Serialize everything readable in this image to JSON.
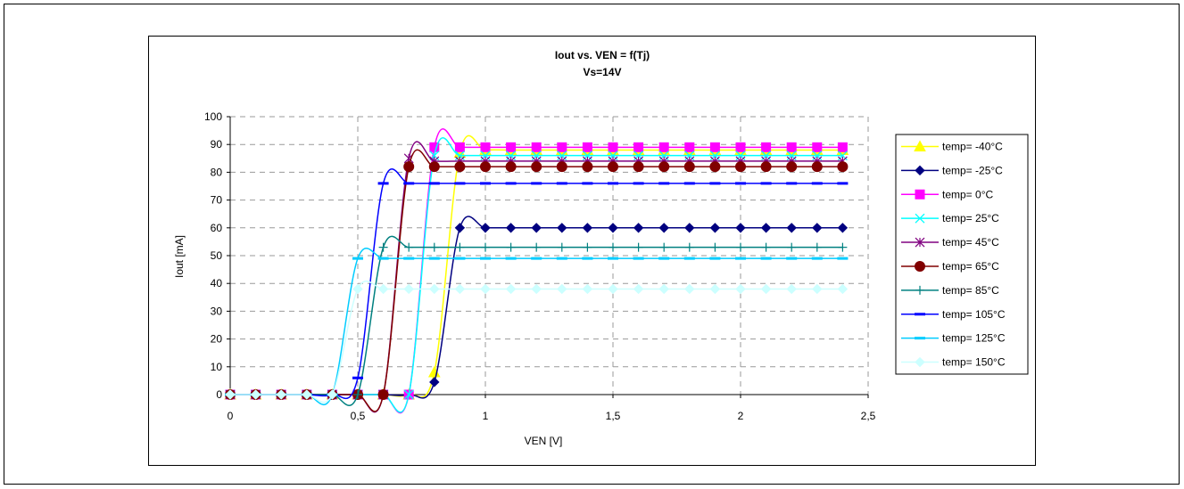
{
  "chart_data": {
    "type": "line",
    "title": "Iout vs. VEN = f(Tj)",
    "subtitle": "Vs=14V",
    "xlabel": "VEN [V]",
    "ylabel": "Iout [mA]",
    "xlim": [
      0,
      2.5
    ],
    "ylim": [
      0,
      100
    ],
    "xticks": [
      0,
      0.5,
      1,
      1.5,
      2,
      2.5
    ],
    "xtick_labels": [
      "0",
      "0,5",
      "1",
      "1,5",
      "2",
      "2,5"
    ],
    "yticks": [
      0,
      10,
      20,
      30,
      40,
      50,
      60,
      70,
      80,
      90,
      100
    ],
    "ytick_labels": [
      "0",
      "10",
      "20",
      "30",
      "40",
      "50",
      "60",
      "70",
      "80",
      "90",
      "100"
    ],
    "grid": "dashed",
    "legend_position": "right",
    "x": [
      0,
      0.1,
      0.2,
      0.3,
      0.4,
      0.5,
      0.6,
      0.7,
      0.8,
      0.9,
      1.0,
      1.1,
      1.2,
      1.3,
      1.4,
      1.5,
      1.6,
      1.7,
      1.8,
      1.9,
      2.0,
      2.1,
      2.2,
      2.3,
      2.4
    ],
    "series": [
      {
        "name": "temp= -40°C",
        "color": "#ffff00",
        "marker": "triangle",
        "values": [
          0,
          0,
          0,
          0,
          0,
          0,
          0,
          0,
          8,
          87,
          88,
          88,
          88,
          88,
          88,
          88,
          88,
          88,
          88,
          88,
          88,
          88,
          88,
          88,
          88
        ]
      },
      {
        "name": "temp= -25°C",
        "color": "#000080",
        "marker": "diamond",
        "values": [
          0,
          0,
          0,
          0,
          0,
          0,
          0,
          0,
          4.5,
          60,
          60,
          60,
          60,
          60,
          60,
          60,
          60,
          60,
          60,
          60,
          60,
          60,
          60,
          60,
          60
        ]
      },
      {
        "name": "temp= 0°C",
        "color": "#ff00ff",
        "marker": "square",
        "values": [
          0,
          0,
          0,
          0,
          0,
          0,
          0,
          0,
          89,
          89,
          89,
          89,
          89,
          89,
          89,
          89,
          89,
          89,
          89,
          89,
          89,
          89,
          89,
          89,
          89
        ]
      },
      {
        "name": "temp= 25°C",
        "color": "#00ffff",
        "marker": "x",
        "values": [
          0,
          0,
          0,
          0,
          0,
          0,
          0,
          0,
          86,
          86,
          86,
          86,
          86,
          86,
          86,
          86,
          86,
          86,
          86,
          86,
          86,
          86,
          86,
          86,
          86
        ]
      },
      {
        "name": "temp= 45°C",
        "color": "#800080",
        "marker": "star",
        "values": [
          0,
          0,
          0,
          0,
          0,
          0,
          0,
          85,
          84,
          84,
          84,
          84,
          84,
          84,
          84,
          84,
          84,
          84,
          84,
          84,
          84,
          84,
          84,
          84,
          84
        ]
      },
      {
        "name": "temp= 65°C",
        "color": "#800000",
        "marker": "circle",
        "values": [
          0,
          0,
          0,
          0,
          0,
          0,
          0,
          82,
          82,
          82,
          82,
          82,
          82,
          82,
          82,
          82,
          82,
          82,
          82,
          82,
          82,
          82,
          82,
          82,
          82
        ]
      },
      {
        "name": "temp= 85°C",
        "color": "#008080",
        "marker": "plus",
        "values": [
          0,
          0,
          0,
          0,
          0,
          0,
          53,
          53,
          53,
          53,
          53,
          53,
          53,
          53,
          53,
          53,
          53,
          53,
          53,
          53,
          53,
          53,
          53,
          53,
          53
        ]
      },
      {
        "name": "temp= 105°C",
        "color": "#0000ff",
        "marker": "dash",
        "values": [
          0,
          0,
          0,
          0,
          0,
          6,
          76,
          76,
          76,
          76,
          76,
          76,
          76,
          76,
          76,
          76,
          76,
          76,
          76,
          76,
          76,
          76,
          76,
          76,
          76
        ]
      },
      {
        "name": "temp= 125°C",
        "color": "#00ccff",
        "marker": "dash",
        "values": [
          0,
          0,
          0,
          0,
          0,
          49,
          49,
          49,
          49,
          49,
          49,
          49,
          49,
          49,
          49,
          49,
          49,
          49,
          49,
          49,
          49,
          49,
          49,
          49,
          49
        ]
      },
      {
        "name": "temp= 150°C",
        "color": "#ccffff",
        "marker": "diamond",
        "values": [
          0,
          0,
          0,
          0,
          0,
          38,
          38,
          38,
          38,
          38,
          38,
          38,
          38,
          38,
          38,
          38,
          38,
          38,
          38,
          38,
          38,
          38,
          38,
          38,
          38
        ]
      }
    ]
  }
}
